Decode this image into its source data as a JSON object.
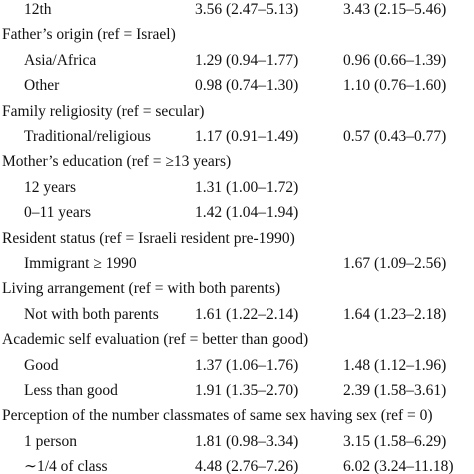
{
  "sections": [
    {
      "rows": [
        {
          "label": "12th",
          "c1": "3.56 (2.47–5.13)",
          "c2": "3.43 (2.15–5.46)"
        }
      ]
    },
    {
      "heading": "Father’s origin (ref = Israel)",
      "rows": [
        {
          "label": "Asia/Africa",
          "c1": "1.29 (0.94–1.77)",
          "c2": "0.96 (0.66–1.39)"
        },
        {
          "label": "Other",
          "c1": "0.98 (0.74–1.30)",
          "c2": "1.10 (0.76–1.60)"
        }
      ]
    },
    {
      "heading": "Family religiosity (ref = secular)",
      "rows": [
        {
          "label": "Traditional/religious",
          "c1": "1.17 (0.91–1.49)",
          "c2": "0.57 (0.43–0.77)"
        }
      ]
    },
    {
      "heading": "Mother’s education (ref = ≥13 years)",
      "rows": [
        {
          "label": "12 years",
          "c1": "1.31 (1.00–1.72)"
        },
        {
          "label": "0–11 years",
          "c1": "1.42 (1.04–1.94)"
        }
      ]
    },
    {
      "heading": "Resident status (ref = Israeli resident pre-1990)",
      "rows": [
        {
          "label": "Immigrant ≥ 1990",
          "c2": "1.67 (1.09–2.56)"
        }
      ]
    },
    {
      "heading": "Living arrangement (ref = with both parents)",
      "rows": [
        {
          "label": "Not with both parents",
          "c1": "1.61 (1.22–2.14)",
          "c2": "1.64 (1.23–2.18)"
        }
      ]
    },
    {
      "heading": "Academic self evaluation (ref = better than good)",
      "rows": [
        {
          "label": "Good",
          "c1": "1.37 (1.06–1.76)",
          "c2": "1.48 (1.12–1.96)"
        },
        {
          "label": "Less than good",
          "c1": "1.91 (1.35–2.70)",
          "c2": "2.39 (1.58–3.61)"
        }
      ]
    },
    {
      "heading": "Perception of the number classmates of same sex having sex (ref = 0)",
      "rows": [
        {
          "label": "1 person",
          "c1": "1.81 (0.98–3.34)",
          "c2": "3.15 (1.58–6.29)"
        },
        {
          "label": "∼1/4 of class",
          "c1": "4.48 (2.76–7.26)",
          "c2": "6.02 (3.24–11.18)"
        }
      ]
    }
  ]
}
